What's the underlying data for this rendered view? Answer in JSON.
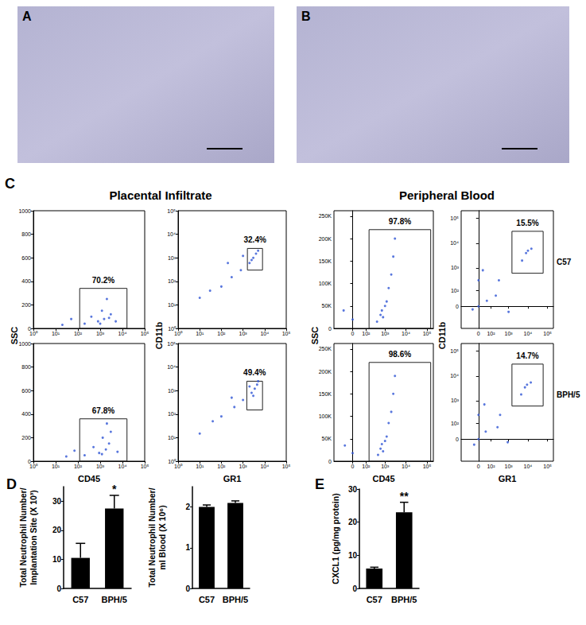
{
  "chart_data": [
    {
      "type": "image",
      "label": "A"
    },
    {
      "type": "image",
      "label": "B"
    },
    {
      "type": "flow",
      "label": "C",
      "titles": [
        "Placental Infiltrate",
        "Peripheral Blood"
      ],
      "rows": [
        "C57",
        "BPH/5"
      ],
      "columns": [
        {
          "xlabel": "CD45",
          "ylabel": "SSC",
          "log": "x",
          "xlim": [
            1,
            100000
          ],
          "xticks": [
            {
              "value": 1,
              "label": "10⁰"
            },
            {
              "value": 10,
              "label": "10¹"
            },
            {
              "value": 100,
              "label": "10²"
            },
            {
              "value": 1000,
              "label": "10³"
            },
            {
              "value": 10000,
              "label": "10⁴"
            },
            {
              "value": 100000,
              "label": "10⁵"
            }
          ],
          "ylim": [
            0,
            1000
          ],
          "yticks": [
            0,
            200,
            400,
            600,
            800,
            1000
          ],
          "plots": [
            {
              "gate": {
                "x": [
                  120,
                  16000
                ],
                "y": [
                  0,
                  340
                ],
                "percent": 70.2,
                "label": "70.2%"
              },
              "events": [
                [
                  800,
                  60
                ],
                [
                  1500,
                  80
                ],
                [
                  2500,
                  90
                ],
                [
                  3000,
                  120
                ],
                [
                  1200,
                  150
                ],
                [
                  400,
                  100
                ],
                [
                  5000,
                  60
                ],
                [
                  200,
                  40
                ],
                [
                  20,
                  30
                ],
                [
                  50,
                  80
                ],
                [
                  2000,
                  250
                ],
                [
                  1000,
                  40
                ]
              ]
            },
            {
              "gate": {
                "x": [
                  120,
                  16000
                ],
                "y": [
                  0,
                  360
                ],
                "percent": 67.8,
                "label": "67.8%"
              },
              "events": [
                [
                  900,
                  70
                ],
                [
                  1800,
                  100
                ],
                [
                  2500,
                  150
                ],
                [
                  3000,
                  250
                ],
                [
                  1300,
                  200
                ],
                [
                  500,
                  120
                ],
                [
                  6000,
                  80
                ],
                [
                  200,
                  50
                ],
                [
                  30,
                  40
                ],
                [
                  70,
                  90
                ],
                [
                  2000,
                  320
                ],
                [
                  1200,
                  60
                ]
              ]
            }
          ]
        },
        {
          "xlabel": "GR1",
          "ylabel": "CD11b",
          "log": true,
          "xlim": [
            1,
            100000
          ],
          "xticks": [
            {
              "value": 1,
              "label": "10⁰"
            },
            {
              "value": 10,
              "label": "10¹"
            },
            {
              "value": 100,
              "label": "10²"
            },
            {
              "value": 1000,
              "label": "10³"
            },
            {
              "value": 10000,
              "label": "10⁴"
            },
            {
              "value": 100000,
              "label": "10⁵"
            }
          ],
          "ylim": [
            1,
            100000
          ],
          "yticks": [
            {
              "value": 1,
              "label": "10⁰"
            },
            {
              "value": 10,
              "label": "10¹"
            },
            {
              "value": 100,
              "label": "10²"
            },
            {
              "value": 1000,
              "label": "10³"
            },
            {
              "value": 10000,
              "label": "10⁴"
            },
            {
              "value": 100000,
              "label": "10⁵"
            }
          ],
          "plots": [
            {
              "gate": {
                "x": [
                  1600,
                  8000
                ],
                "y": [
                  300,
                  2500
                ],
                "percent": 32.4,
                "label": "32.4%"
              },
              "events": [
                [
                  10,
                  20
                ],
                [
                  30,
                  40
                ],
                [
                  100,
                  60
                ],
                [
                  300,
                  150
                ],
                [
                  800,
                  300
                ],
                [
                  2000,
                  600
                ],
                [
                  3000,
                  1000
                ],
                [
                  4000,
                  1500
                ],
                [
                  5000,
                  2000
                ],
                [
                  2500,
                  800
                ],
                [
                  1000,
                  1200
                ],
                [
                  200,
                  600
                ]
              ]
            },
            {
              "gate": {
                "x": [
                  1500,
                  8000
                ],
                "y": [
                  150,
                  2500
                ],
                "percent": 49.4,
                "label": "49.4%"
              },
              "events": [
                [
                  10,
                  15
                ],
                [
                  40,
                  50
                ],
                [
                  100,
                  80
                ],
                [
                  400,
                  200
                ],
                [
                  1000,
                  400
                ],
                [
                  2500,
                  800
                ],
                [
                  3500,
                  1200
                ],
                [
                  4500,
                  1800
                ],
                [
                  3000,
                  600
                ],
                [
                  5000,
                  2500
                ],
                [
                  2000,
                  1500
                ],
                [
                  300,
                  500
                ]
              ]
            }
          ]
        },
        {
          "xlabel": "CD45",
          "ylabel": "SSC",
          "log": "x",
          "xlim": [
            -200,
            200000
          ],
          "xticks": [
            0,
            {
              "value": 100,
              "label": "10²"
            },
            {
              "value": 1000,
              "label": "10³"
            },
            {
              "value": 10000,
              "label": "10⁴"
            },
            {
              "value": 100000,
              "label": "10⁵"
            }
          ],
          "ylim": [
            0,
            262144
          ],
          "yticks": [
            0,
            {
              "value": 50000,
              "label": "50K"
            },
            {
              "value": 100000,
              "label": "100K"
            },
            {
              "value": 150000,
              "label": "150K"
            },
            {
              "value": 200000,
              "label": "200K"
            },
            {
              "value": 250000,
              "label": "250K"
            }
          ],
          "plots": [
            {
              "gate": {
                "x": [
                  150,
                  150000
                ],
                "y": [
                  0,
                  220000
                ],
                "percent": 97.8,
                "label": "97.8%"
              },
              "events": [
                [
                  600,
                  30000
                ],
                [
                  800,
                  25000
                ],
                [
                  700,
                  40000
                ],
                [
                  1200,
                  60000
                ],
                [
                  1500,
                  90000
                ],
                [
                  2000,
                  120000
                ],
                [
                  2500,
                  160000
                ],
                [
                  3000,
                  200000
                ],
                [
                  1000,
                  50000
                ],
                [
                  0,
                  20000
                ],
                [
                  -50,
                  40000
                ],
                [
                  400,
                  15000
                ]
              ]
            },
            {
              "gate": {
                "x": [
                  150,
                  150000
                ],
                "y": [
                  0,
                  220000
                ],
                "percent": 98.6,
                "label": "98.6%"
              },
              "events": [
                [
                  600,
                  28000
                ],
                [
                  800,
                  22000
                ],
                [
                  700,
                  38000
                ],
                [
                  1200,
                  55000
                ],
                [
                  1500,
                  85000
                ],
                [
                  2000,
                  110000
                ],
                [
                  2500,
                  150000
                ],
                [
                  3000,
                  190000
                ],
                [
                  1000,
                  45000
                ],
                [
                  0,
                  18000
                ],
                [
                  -40,
                  35000
                ],
                [
                  450,
                  14000
                ]
              ]
            }
          ]
        },
        {
          "xlabel": "GR1",
          "ylabel": "CD11b",
          "log": true,
          "xlim": [
            -200,
            200000
          ],
          "xticks": [
            0,
            {
              "value": 100,
              "label": "10²"
            },
            {
              "value": 1000,
              "label": "10³"
            },
            {
              "value": 10000,
              "label": "10⁴"
            },
            {
              "value": 100000,
              "label": "10⁵"
            }
          ],
          "ylim": [
            -200,
            200000
          ],
          "yticks": [
            0,
            {
              "value": 100,
              "label": "10²"
            },
            {
              "value": 1000,
              "label": "10³"
            },
            {
              "value": 10000,
              "label": "10⁴"
            },
            {
              "value": 100000,
              "label": "10⁵"
            }
          ],
          "plots": [
            {
              "gate": {
                "x": [
                  1500,
                  60000
                ],
                "y": [
                  600,
                  30000
                ],
                "percent": 15.5,
                "label": "15.5%"
              },
              "events": [
                [
                  0,
                  0
                ],
                [
                  50,
                  20
                ],
                [
                  -30,
                  -10
                ],
                [
                  0,
                  300
                ],
                [
                  20,
                  800
                ],
                [
                  1000,
                  -20
                ],
                [
                  200,
                  50
                ],
                [
                  10000,
                  5000
                ],
                [
                  8000,
                  4000
                ],
                [
                  15000,
                  6000
                ],
                [
                  300,
                  300
                ],
                [
                  5000,
                  2000
                ]
              ]
            },
            {
              "gate": {
                "x": [
                  1500,
                  60000
                ],
                "y": [
                  600,
                  30000
                ],
                "percent": 14.7,
                "label": "14.7%"
              },
              "events": [
                [
                  0,
                  0
                ],
                [
                  40,
                  30
                ],
                [
                  -20,
                  -20
                ],
                [
                  0,
                  250
                ],
                [
                  30,
                  700
                ],
                [
                  900,
                  -10
                ],
                [
                  250,
                  60
                ],
                [
                  9000,
                  4500
                ],
                [
                  7000,
                  3500
                ],
                [
                  14000,
                  5500
                ],
                [
                  350,
                  250
                ],
                [
                  4500,
                  1800
                ]
              ]
            }
          ]
        }
      ]
    },
    {
      "type": "bar",
      "label": "D",
      "categories": [
        "C57",
        "BPH/5"
      ],
      "values": [
        10.5,
        27.5
      ],
      "errors": [
        5,
        4.5
      ],
      "color": "#000000",
      "ylim": [
        0,
        35
      ],
      "yticks": [
        0,
        10,
        20,
        30
      ],
      "ylabel": [
        "Total Neutrophil Number/",
        "Implantation Site (X 10³)"
      ],
      "annotations": [
        {
          "category": "BPH/5",
          "text": "*"
        }
      ]
    },
    {
      "type": "bar",
      "categories": [
        "C57",
        "BPH/5"
      ],
      "values": [
        2.0,
        2.1
      ],
      "errors": [
        0.05,
        0.05
      ],
      "color": "#000000",
      "ylim": [
        0,
        2.5
      ],
      "yticks": [
        0,
        1,
        2
      ],
      "ylabel": [
        "Total Neutrophil Number/",
        "ml Blood (X 10⁶)"
      ]
    },
    {
      "type": "bar",
      "label": "E",
      "categories": [
        "C57",
        "BPH/5"
      ],
      "values": [
        6,
        23
      ],
      "errors": [
        0.4,
        3
      ],
      "color": "#000000",
      "ylim": [
        0,
        30
      ],
      "yticks": [
        0,
        10,
        20,
        30
      ],
      "ylabel": [
        "CXCL1 (pg/mg protein)"
      ],
      "annotations": [
        {
          "category": "BPH/5",
          "text": "**"
        }
      ]
    }
  ]
}
